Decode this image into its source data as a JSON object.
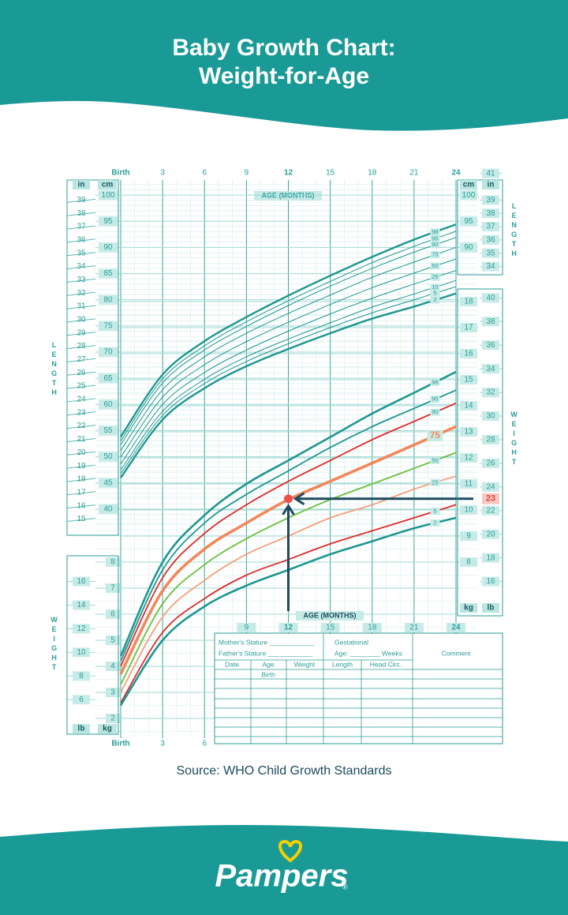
{
  "header": {
    "title": [
      "Baby Growth Chart:",
      "Weight-for-Age"
    ]
  },
  "chart_data": [
    {
      "type": "line",
      "x": [
        0,
        3,
        6,
        9,
        12,
        15,
        18,
        21,
        24
      ],
      "xlim": [
        0,
        24
      ],
      "xticks": [
        {
          "value": 0,
          "label": "Birth"
        },
        3,
        6,
        9,
        12,
        15,
        18,
        21,
        24
      ],
      "xlabel": "AGE (MONTHS)",
      "ylabel": "LENGTH",
      "ylabel_right": "LENGTH",
      "y_unit": "cm",
      "y2_unit": "in",
      "y_unit_right": "cm",
      "y2_unit_right": "in",
      "ylim": [
        35,
        105
      ],
      "yticks": [
        40,
        45,
        50,
        55,
        60,
        65,
        70,
        75,
        80,
        85,
        90,
        95,
        100
      ],
      "yticks_right": [
        90,
        95,
        100
      ],
      "y2lim": [
        13.78,
        41.34
      ],
      "y2ticks": [
        15,
        16,
        17,
        18,
        19,
        20,
        21,
        22,
        23,
        24,
        25,
        26,
        27,
        28,
        29,
        30,
        31,
        32,
        33,
        34,
        35,
        36,
        37,
        38,
        39
      ],
      "y2ticks_right": [
        34,
        35,
        36,
        37,
        38,
        39,
        41
      ],
      "series": [
        {
          "name": "98",
          "color": "#1f9690",
          "values": [
            53.8,
            65.7,
            72.1,
            76.7,
            80.8,
            84.6,
            88.2,
            91.5,
            94.4
          ]
        },
        {
          "name": "95",
          "color": "#1f9690",
          "values": [
            53.0,
            64.9,
            71.2,
            75.8,
            79.8,
            83.5,
            87.1,
            90.2,
            93.1
          ]
        },
        {
          "name": "90",
          "color": "#1f9690",
          "values": [
            52.3,
            64.1,
            70.4,
            74.9,
            78.9,
            82.6,
            86.0,
            89.1,
            91.9
          ]
        },
        {
          "name": "75",
          "color": "#1f9690",
          "values": [
            51.2,
            62.8,
            69.1,
            73.6,
            77.4,
            80.9,
            84.3,
            87.2,
            90.0
          ]
        },
        {
          "name": "50",
          "color": "#1f9690",
          "values": [
            49.9,
            61.4,
            67.6,
            72.0,
            75.7,
            79.1,
            82.3,
            85.1,
            87.8
          ]
        },
        {
          "name": "25",
          "color": "#1f9690",
          "values": [
            48.6,
            60.0,
            66.1,
            70.4,
            74.0,
            77.3,
            80.3,
            83.0,
            85.6
          ]
        },
        {
          "name": "10",
          "color": "#1f9690",
          "values": [
            47.5,
            58.7,
            64.8,
            69.1,
            72.5,
            75.6,
            78.6,
            81.1,
            83.7
          ]
        },
        {
          "name": "5",
          "color": "#1f9690",
          "values": [
            46.8,
            57.9,
            64.0,
            68.2,
            71.6,
            74.7,
            77.5,
            80.0,
            82.5
          ]
        },
        {
          "name": "2",
          "color": "#1f9690",
          "values": [
            46.0,
            57.1,
            63.1,
            67.3,
            70.6,
            73.6,
            76.4,
            78.7,
            81.2
          ]
        }
      ]
    },
    {
      "type": "line",
      "x": [
        0,
        3,
        6,
        9,
        12,
        15,
        18,
        21,
        24
      ],
      "xlim": [
        0,
        24
      ],
      "xticks": [
        {
          "value": 0,
          "label": "Birth"
        },
        3,
        6
      ],
      "xticks_middle": [
        9,
        12,
        15,
        18,
        21,
        24
      ],
      "xlabel": "AGE (MONTHS)",
      "ylabel": "WEIGHT",
      "ylabel_right": "WEIGHT",
      "y_unit": "kg",
      "y2_unit": "lb",
      "y_unit_left": "kg",
      "y2_unit_left": "lb",
      "ylim": [
        1.5,
        18.5
      ],
      "yticks": [
        8,
        9,
        10,
        11,
        12,
        13,
        14,
        15,
        16,
        17,
        18
      ],
      "yticks_left": [
        2,
        3,
        4,
        5,
        6,
        7,
        8
      ],
      "y2lim": [
        3.31,
        40.79
      ],
      "y2ticks": [
        16,
        18,
        20,
        22,
        24,
        26,
        28,
        30,
        32,
        34,
        36,
        38,
        40
      ],
      "y2ticks_left": [
        6,
        8,
        10,
        12,
        14,
        16
      ],
      "series": [
        {
          "name": "98",
          "color": "#1f9690",
          "values": [
            4.4,
            8.0,
            9.8,
            11.0,
            11.9,
            12.8,
            13.7,
            14.5,
            15.3
          ]
        },
        {
          "name": "95",
          "color": "#1f9690",
          "values": [
            4.2,
            7.7,
            9.5,
            10.6,
            11.5,
            12.4,
            13.2,
            13.9,
            14.6
          ]
        },
        {
          "name": "90",
          "color": "#e02a2a",
          "values": [
            4.0,
            7.4,
            9.1,
            10.2,
            11.1,
            11.9,
            12.7,
            13.4,
            14.1
          ]
        },
        {
          "name": "75",
          "color": "#f2875a",
          "values": [
            3.7,
            6.9,
            8.5,
            9.5,
            10.4,
            11.1,
            11.8,
            12.5,
            13.2
          ]
        },
        {
          "name": "50",
          "color": "#6cbf3c",
          "values": [
            3.3,
            6.4,
            7.9,
            8.9,
            9.7,
            10.4,
            11.0,
            11.6,
            12.2
          ]
        },
        {
          "name": "25",
          "color": "#f4a07a",
          "values": [
            3.0,
            5.9,
            7.3,
            8.3,
            9.0,
            9.7,
            10.2,
            10.8,
            11.3
          ]
        },
        {
          "name": "5",
          "color": "#e02a2a",
          "values": [
            2.6,
            5.3,
            6.6,
            7.5,
            8.1,
            8.7,
            9.2,
            9.7,
            10.2
          ]
        },
        {
          "name": "2",
          "color": "#1f9690",
          "values": [
            2.5,
            5.0,
            6.3,
            7.1,
            7.7,
            8.3,
            8.8,
            9.3,
            9.7
          ]
        }
      ],
      "highlight": {
        "x": 12,
        "y2": 23
      }
    }
  ],
  "table": {
    "mother": "Mother's Stature ____________",
    "father": "Father's Stature ____________",
    "gestational": "Gestational",
    "gestational_age": "Age: ________ Weeks",
    "comment": "Comment",
    "columns": [
      "Date",
      "Age",
      "Weight",
      "Length",
      "Head Circ."
    ],
    "birth": "Birth"
  },
  "source": "Source:  WHO Child Growth Standards",
  "brand": "Pampers",
  "brand_mark": "®"
}
